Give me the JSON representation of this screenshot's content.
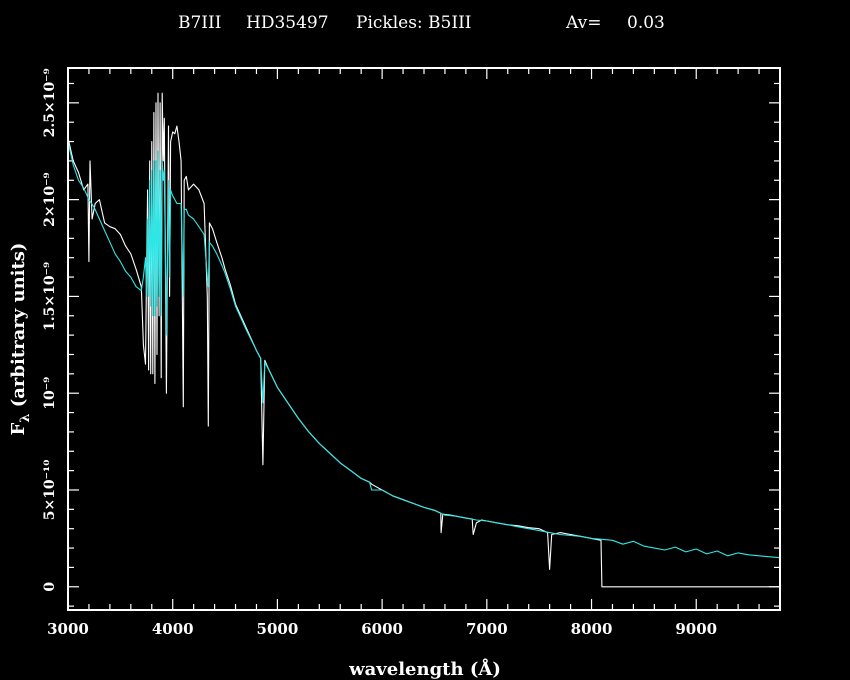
{
  "chart_data": {
    "type": "line",
    "title_parts": {
      "object": "B7III",
      "star": "HD35497",
      "template": "Pickles:  B5III",
      "av_label": "Av=",
      "av_value": "0.03"
    },
    "xlabel": "wavelength (Å)",
    "ylabel": "F_λ (arbitrary units)",
    "ylabel_parts": {
      "main": "F",
      "sub": "λ",
      "rest": " (arbitrary units)"
    },
    "xlim": [
      3000,
      9800
    ],
    "ylim": [
      -1.2e-10,
      2.68e-09
    ],
    "x_ticks": [
      {
        "value": 3000,
        "label": "3000"
      },
      {
        "value": 4000,
        "label": "4000"
      },
      {
        "value": 5000,
        "label": "5000"
      },
      {
        "value": 6000,
        "label": "6000"
      },
      {
        "value": 7000,
        "label": "7000"
      },
      {
        "value": 8000,
        "label": "8000"
      },
      {
        "value": 9000,
        "label": "9000"
      }
    ],
    "y_ticks": [
      {
        "value": 0,
        "label": "0"
      },
      {
        "value": 5e-10,
        "label": "5×10⁻¹⁰"
      },
      {
        "value": 1e-09,
        "label": "10⁻⁹"
      },
      {
        "value": 1.5e-09,
        "label": "1.5×10⁻⁹"
      },
      {
        "value": 2e-09,
        "label": "2×10⁻⁹"
      },
      {
        "value": 2.5e-09,
        "label": "2.5×10⁻⁹"
      }
    ],
    "series": [
      {
        "color": "#ffffff",
        "x": [
          3000,
          3050,
          3100,
          3150,
          3190,
          3200,
          3210,
          3230,
          3260,
          3300,
          3350,
          3400,
          3450,
          3500,
          3550,
          3600,
          3650,
          3700,
          3720,
          3740,
          3750,
          3760,
          3770,
          3780,
          3790,
          3800,
          3810,
          3820,
          3830,
          3840,
          3850,
          3860,
          3870,
          3880,
          3890,
          3900,
          3910,
          3920,
          3940,
          3960,
          3970,
          3980,
          4000,
          4020,
          4040,
          4060,
          4080,
          4101,
          4110,
          4130,
          4150,
          4200,
          4250,
          4300,
          4330,
          4340,
          4350,
          4380,
          4420,
          4470,
          4500,
          4550,
          4600,
          4700,
          4800,
          4840,
          4861,
          4880,
          4920,
          5000,
          5100,
          5200,
          5300,
          5400,
          5500,
          5600,
          5700,
          5800,
          5880,
          5900,
          6000,
          6100,
          6200,
          6300,
          6400,
          6500,
          6560,
          6563,
          6580,
          6650,
          6700,
          6800,
          6860,
          6870,
          6900,
          6950,
          7000,
          7100,
          7200,
          7300,
          7400,
          7500,
          7580,
          7600,
          7620,
          7700,
          7800,
          7900,
          8000,
          8090,
          8099,
          8100,
          8200,
          8400,
          8600,
          8800,
          9000,
          9200,
          9400,
          9600,
          9800
        ],
        "y": [
          2.32e-09,
          2.2e-09,
          2.14e-09,
          2.05e-09,
          2.08e-09,
          1.68e-09,
          2.2e-09,
          1.9e-09,
          1.98e-09,
          2e-09,
          1.88e-09,
          1.86e-09,
          1.85e-09,
          1.82e-09,
          1.76e-09,
          1.72e-09,
          1.64e-09,
          1.55e-09,
          1.25e-09,
          1.15e-09,
          1.6e-09,
          2.05e-09,
          1.12e-09,
          2.2e-09,
          1.1e-09,
          2.3e-09,
          1.1e-09,
          2.45e-09,
          1.05e-09,
          2.5e-09,
          1.2e-09,
          2.55e-09,
          1.4e-09,
          2.5e-09,
          1.08e-09,
          2.55e-09,
          2.2e-09,
          2.42e-09,
          1e-09,
          2.38e-09,
          1.5e-09,
          2.3e-09,
          2.35e-09,
          2.34e-09,
          2.38e-09,
          2.3e-09,
          2.2e-09,
          9.3e-10,
          2.1e-09,
          2.12e-09,
          2.05e-09,
          2.08e-09,
          2.05e-09,
          1.98e-09,
          1.5e-09,
          8.3e-10,
          1.88e-09,
          1.85e-09,
          1.78e-09,
          1.7e-09,
          1.64e-09,
          1.56e-09,
          1.46e-09,
          1.34e-09,
          1.22e-09,
          1.18e-09,
          6.3e-10,
          1.17e-09,
          1.12e-09,
          1.03e-09,
          9.5e-10,
          8.7e-10,
          8e-10,
          7.4e-10,
          6.9e-10,
          6.4e-10,
          6e-10,
          5.6e-10,
          5.4e-10,
          5.3e-10,
          5e-10,
          4.7e-10,
          4.5e-10,
          4.3e-10,
          4.1e-10,
          3.95e-10,
          3.8e-10,
          2.8e-10,
          3.75e-10,
          3.7e-10,
          3.65e-10,
          3.55e-10,
          3.5e-10,
          2.7e-10,
          3.3e-10,
          3.45e-10,
          3.4e-10,
          3.3e-10,
          3.2e-10,
          3.15e-10,
          3.05e-10,
          3e-10,
          2.8e-10,
          9e-11,
          2.7e-10,
          2.8e-10,
          2.7e-10,
          2.6e-10,
          2.5e-10,
          2.4e-10,
          0.0,
          0.0,
          0.0,
          0.0,
          0.0,
          0.0,
          0.0,
          0.0,
          0.0,
          0.0,
          0.0
        ]
      },
      {
        "color": "#2ee6e6",
        "x": [
          3000,
          3050,
          3100,
          3150,
          3200,
          3250,
          3300,
          3350,
          3400,
          3450,
          3500,
          3550,
          3600,
          3650,
          3700,
          3720,
          3740,
          3750,
          3760,
          3770,
          3780,
          3790,
          3800,
          3810,
          3820,
          3830,
          3840,
          3850,
          3860,
          3870,
          3880,
          3890,
          3900,
          3910,
          3920,
          3940,
          3960,
          3970,
          3980,
          4000,
          4020,
          4040,
          4060,
          4080,
          4101,
          4110,
          4130,
          4150,
          4200,
          4250,
          4300,
          4330,
          4340,
          4350,
          4380,
          4420,
          4470,
          4500,
          4550,
          4600,
          4700,
          4800,
          4840,
          4861,
          4880,
          4920,
          5000,
          5100,
          5200,
          5300,
          5400,
          5500,
          5600,
          5700,
          5800,
          5880,
          5900,
          6000,
          6100,
          6200,
          6300,
          6400,
          6500,
          6560,
          6600,
          6700,
          6800,
          6900,
          7000,
          7100,
          7200,
          7300,
          7400,
          7500,
          7600,
          7700,
          7800,
          7900,
          8000,
          8100,
          8200,
          8300,
          8400,
          8500,
          8600,
          8700,
          8800,
          8900,
          9000,
          9100,
          9200,
          9300,
          9400,
          9500,
          9600,
          9700,
          9800
        ],
        "y": [
          2.3e-09,
          2.18e-09,
          2.1e-09,
          2.06e-09,
          2e-09,
          1.96e-09,
          1.9e-09,
          1.84e-09,
          1.78e-09,
          1.72e-09,
          1.68e-09,
          1.63e-09,
          1.6e-09,
          1.55e-09,
          1.53e-09,
          1.6e-09,
          1.7e-09,
          1.5e-09,
          1.9e-09,
          1.5e-09,
          2.1e-09,
          1.45e-09,
          2.15e-09,
          1.4e-09,
          2.2e-09,
          1.4e-09,
          2.2e-09,
          1.45e-09,
          2.25e-09,
          1.5e-09,
          2.15e-09,
          1.4e-09,
          2.2e-09,
          2.1e-09,
          2.15e-09,
          1.3e-09,
          2.1e-09,
          1.6e-09,
          2.05e-09,
          2.02e-09,
          2e-09,
          1.98e-09,
          1.98e-09,
          1.98e-09,
          1.5e-09,
          1.95e-09,
          1.95e-09,
          1.92e-09,
          1.9e-09,
          1.86e-09,
          1.82e-09,
          1.6e-09,
          1.55e-09,
          1.78e-09,
          1.76e-09,
          1.72e-09,
          1.66e-09,
          1.62e-09,
          1.54e-09,
          1.45e-09,
          1.33e-09,
          1.22e-09,
          1.18e-09,
          9.5e-10,
          1.16e-09,
          1.12e-09,
          1.03e-09,
          9.5e-10,
          8.7e-10,
          8e-10,
          7.4e-10,
          6.9e-10,
          6.4e-10,
          6e-10,
          5.6e-10,
          5.4e-10,
          5e-10,
          5e-10,
          4.7e-10,
          4.5e-10,
          4.3e-10,
          4.1e-10,
          3.95e-10,
          3.8e-10,
          3.7e-10,
          3.65e-10,
          3.55e-10,
          3.45e-10,
          3.4e-10,
          3.3e-10,
          3.2e-10,
          3.1e-10,
          3e-10,
          2.9e-10,
          2.8e-10,
          2.7e-10,
          2.65e-10,
          2.6e-10,
          2.5e-10,
          2.45e-10,
          2.4e-10,
          2.2e-10,
          2.35e-10,
          2.1e-10,
          2e-10,
          1.9e-10,
          2.05e-10,
          1.8e-10,
          1.95e-10,
          1.7e-10,
          1.85e-10,
          1.6e-10,
          1.75e-10,
          1.65e-10,
          1.6e-10,
          1.55e-10,
          1.5e-10
        ]
      }
    ],
    "grid": false,
    "legend": "none"
  }
}
